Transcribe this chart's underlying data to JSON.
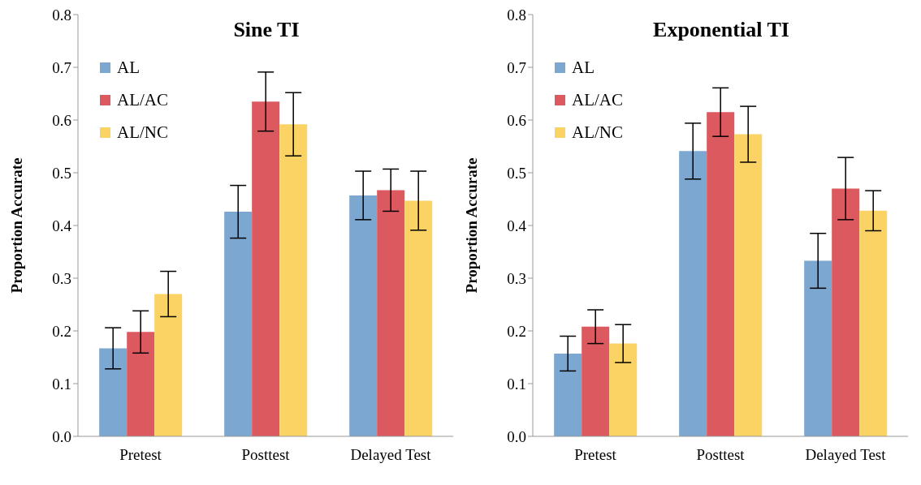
{
  "chart_data": [
    {
      "type": "bar",
      "title": "Sine TI",
      "ylabel": "Proportion Accurate",
      "categories": [
        "Pretest",
        "Posttest",
        "Delayed Test"
      ],
      "series": [
        {
          "name": "AL",
          "color": "#7ba7d0",
          "values": [
            0.167,
            0.426,
            0.457
          ],
          "errors": [
            0.039,
            0.05,
            0.046
          ]
        },
        {
          "name": "AL/AC",
          "color": "#dc5a5f",
          "values": [
            0.198,
            0.635,
            0.467
          ],
          "errors": [
            0.04,
            0.056,
            0.04
          ]
        },
        {
          "name": "AL/NC",
          "color": "#fad364",
          "values": [
            0.27,
            0.592,
            0.447
          ],
          "errors": [
            0.043,
            0.06,
            0.056
          ]
        }
      ],
      "ylim": [
        0,
        0.8
      ],
      "yticks": [
        {
          "value": 0,
          "label": "0.0"
        },
        {
          "value": 0.1,
          "label": "0.1"
        },
        {
          "value": 0.2,
          "label": "0.2"
        },
        {
          "value": 0.3,
          "label": "0.3"
        },
        {
          "value": 0.4,
          "label": "0.4"
        },
        {
          "value": 0.5,
          "label": "0.5"
        },
        {
          "value": 0.6,
          "label": "0.6"
        },
        {
          "value": 0.7,
          "label": "0.7"
        },
        {
          "value": 0.8,
          "label": "0.8"
        }
      ],
      "grid": false,
      "legend": "top left"
    },
    {
      "type": "bar",
      "title": "Exponential TI",
      "ylabel": "Proportion Accurate",
      "categories": [
        "Pretest",
        "Posttest",
        "Delayed Test"
      ],
      "series": [
        {
          "name": "AL",
          "color": "#7ba7d0",
          "values": [
            0.157,
            0.541,
            0.333
          ],
          "errors": [
            0.033,
            0.053,
            0.052
          ]
        },
        {
          "name": "AL/AC",
          "color": "#dc5a5f",
          "values": [
            0.208,
            0.615,
            0.47
          ],
          "errors": [
            0.032,
            0.046,
            0.059
          ]
        },
        {
          "name": "AL/NC",
          "color": "#fad364",
          "values": [
            0.176,
            0.573,
            0.428
          ],
          "errors": [
            0.036,
            0.053,
            0.038
          ]
        }
      ],
      "ylim": [
        0,
        0.8
      ],
      "yticks": [
        {
          "value": 0,
          "label": "0.0"
        },
        {
          "value": 0.1,
          "label": "0.1"
        },
        {
          "value": 0.2,
          "label": "0.2"
        },
        {
          "value": 0.3,
          "label": "0.3"
        },
        {
          "value": 0.4,
          "label": "0.4"
        },
        {
          "value": 0.5,
          "label": "0.5"
        },
        {
          "value": 0.6,
          "label": "0.6"
        },
        {
          "value": 0.7,
          "label": "0.7"
        },
        {
          "value": 0.8,
          "label": "0.8"
        }
      ],
      "grid": false,
      "legend": "top left"
    }
  ]
}
